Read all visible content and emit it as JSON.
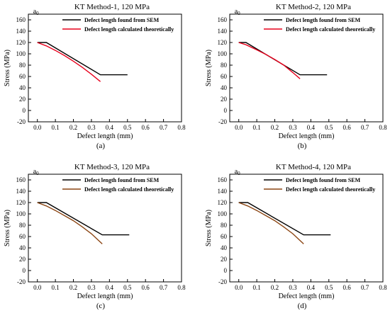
{
  "figure": {
    "panels": [
      {
        "title": "KT Method-1, 120 MPa",
        "caption": "(a)",
        "a0_label": "a",
        "a0_sub": "0",
        "xlabel": "Defect length (mm)",
        "ylabel": "Stress (MPa)"
      },
      {
        "title": "KT Method-2, 120 MPa",
        "caption": "(b)",
        "a0_label": "a",
        "a0_sub": "0",
        "xlabel": "Defect length (mm)",
        "ylabel": "Stress (MPa)"
      },
      {
        "title": "KT Method-3, 120 MPa",
        "caption": "(c)",
        "a0_label": "a",
        "a0_sub": "0",
        "xlabel": "Defect length (mm)",
        "ylabel": "Stress (MPa)"
      },
      {
        "title": "KT Method-4, 120 MPa",
        "caption": "(d)",
        "a0_label": "a",
        "a0_sub": "0",
        "xlabel": "Defect length (mm)",
        "ylabel": "Stress (MPa)"
      }
    ]
  },
  "chart_data": [
    {
      "type": "line",
      "title": "KT Method-1, 120 MPa",
      "xlabel": "Defect length (mm)",
      "ylabel": "Stress (MPa)",
      "xlim": [
        -0.05,
        0.8
      ],
      "ylim": [
        -20,
        170
      ],
      "xticks": [
        "0.0",
        "0.1",
        "0.2",
        "0.3",
        "0.4",
        "0.5",
        "0.6",
        "0.7",
        "0.8"
      ],
      "yticks": [
        "-20",
        "0",
        "20",
        "40",
        "60",
        "80",
        "100",
        "120",
        "140",
        "160"
      ],
      "grid": false,
      "legend_position": "top-right",
      "series": [
        {
          "name": "Defect length found from SEM",
          "color": "#000000",
          "x": [
            0.0,
            0.05,
            0.35,
            0.5
          ],
          "y": [
            120,
            120,
            63,
            63
          ]
        },
        {
          "name": "Defect length calculated theoretically",
          "color": "#e8001c",
          "x": [
            0.0,
            0.05,
            0.1,
            0.15,
            0.2,
            0.25,
            0.3,
            0.35
          ],
          "y": [
            120,
            114,
            106,
            97,
            87,
            76,
            64,
            51
          ]
        }
      ]
    },
    {
      "type": "line",
      "title": "KT Method-2, 120 MPa",
      "xlabel": "Defect length (mm)",
      "ylabel": "Stress (MPa)",
      "xlim": [
        -0.05,
        0.8
      ],
      "ylim": [
        -20,
        170
      ],
      "xticks": [
        "0.0",
        "0.1",
        "0.2",
        "0.3",
        "0.4",
        "0.5",
        "0.6",
        "0.7",
        "0.8"
      ],
      "yticks": [
        "-20",
        "0",
        "20",
        "40",
        "60",
        "80",
        "100",
        "120",
        "140",
        "160"
      ],
      "grid": false,
      "legend_position": "top-right",
      "series": [
        {
          "name": "Defect length found from SEM",
          "color": "#000000",
          "x": [
            0.0,
            0.04,
            0.34,
            0.49
          ],
          "y": [
            120,
            120,
            63,
            63
          ]
        },
        {
          "name": "Defect length calculated theoretically",
          "color": "#e8001c",
          "x": [
            0.0,
            0.04,
            0.1,
            0.15,
            0.2,
            0.25,
            0.3,
            0.34
          ],
          "y": [
            120,
            116,
            107,
            99,
            90,
            80,
            67,
            56
          ]
        }
      ]
    },
    {
      "type": "line",
      "title": "KT Method-3, 120 MPa",
      "xlabel": "Defect length (mm)",
      "ylabel": "Stress (MPa)",
      "xlim": [
        -0.05,
        0.8
      ],
      "ylim": [
        -20,
        170
      ],
      "xticks": [
        "0.0",
        "0.1",
        "0.2",
        "0.3",
        "0.4",
        "0.5",
        "0.6",
        "0.7",
        "0.8"
      ],
      "yticks": [
        "-20",
        "0",
        "20",
        "40",
        "60",
        "80",
        "100",
        "120",
        "140",
        "160"
      ],
      "grid": false,
      "legend_position": "top-right",
      "series": [
        {
          "name": "Defect length found from SEM",
          "color": "#000000",
          "x": [
            0.0,
            0.05,
            0.36,
            0.51
          ],
          "y": [
            120,
            120,
            63,
            63
          ]
        },
        {
          "name": "Defect length calculated theoretically",
          "color": "#8b4513",
          "x": [
            0.0,
            0.05,
            0.1,
            0.15,
            0.2,
            0.25,
            0.3,
            0.36
          ],
          "y": [
            120,
            114,
            106,
            97,
            88,
            77,
            65,
            47
          ]
        }
      ]
    },
    {
      "type": "line",
      "title": "KT Method-4, 120 MPa",
      "xlabel": "Defect length (mm)",
      "ylabel": "Stress (MPa)",
      "xlim": [
        -0.05,
        0.8
      ],
      "ylim": [
        -20,
        170
      ],
      "xticks": [
        "0.0",
        "0.1",
        "0.2",
        "0.3",
        "0.4",
        "0.5",
        "0.6",
        "0.7",
        "0.8"
      ],
      "yticks": [
        "-20",
        "0",
        "20",
        "40",
        "60",
        "80",
        "100",
        "120",
        "140",
        "160"
      ],
      "grid": false,
      "legend_position": "top-right",
      "series": [
        {
          "name": "Defect length found from SEM",
          "color": "#000000",
          "x": [
            0.0,
            0.05,
            0.36,
            0.51
          ],
          "y": [
            120,
            120,
            63,
            63
          ]
        },
        {
          "name": "Defect length calculated theoretically",
          "color": "#8b4513",
          "x": [
            0.0,
            0.05,
            0.1,
            0.15,
            0.2,
            0.25,
            0.3,
            0.36
          ],
          "y": [
            120,
            114,
            106,
            97,
            88,
            77,
            65,
            47
          ]
        }
      ]
    }
  ]
}
